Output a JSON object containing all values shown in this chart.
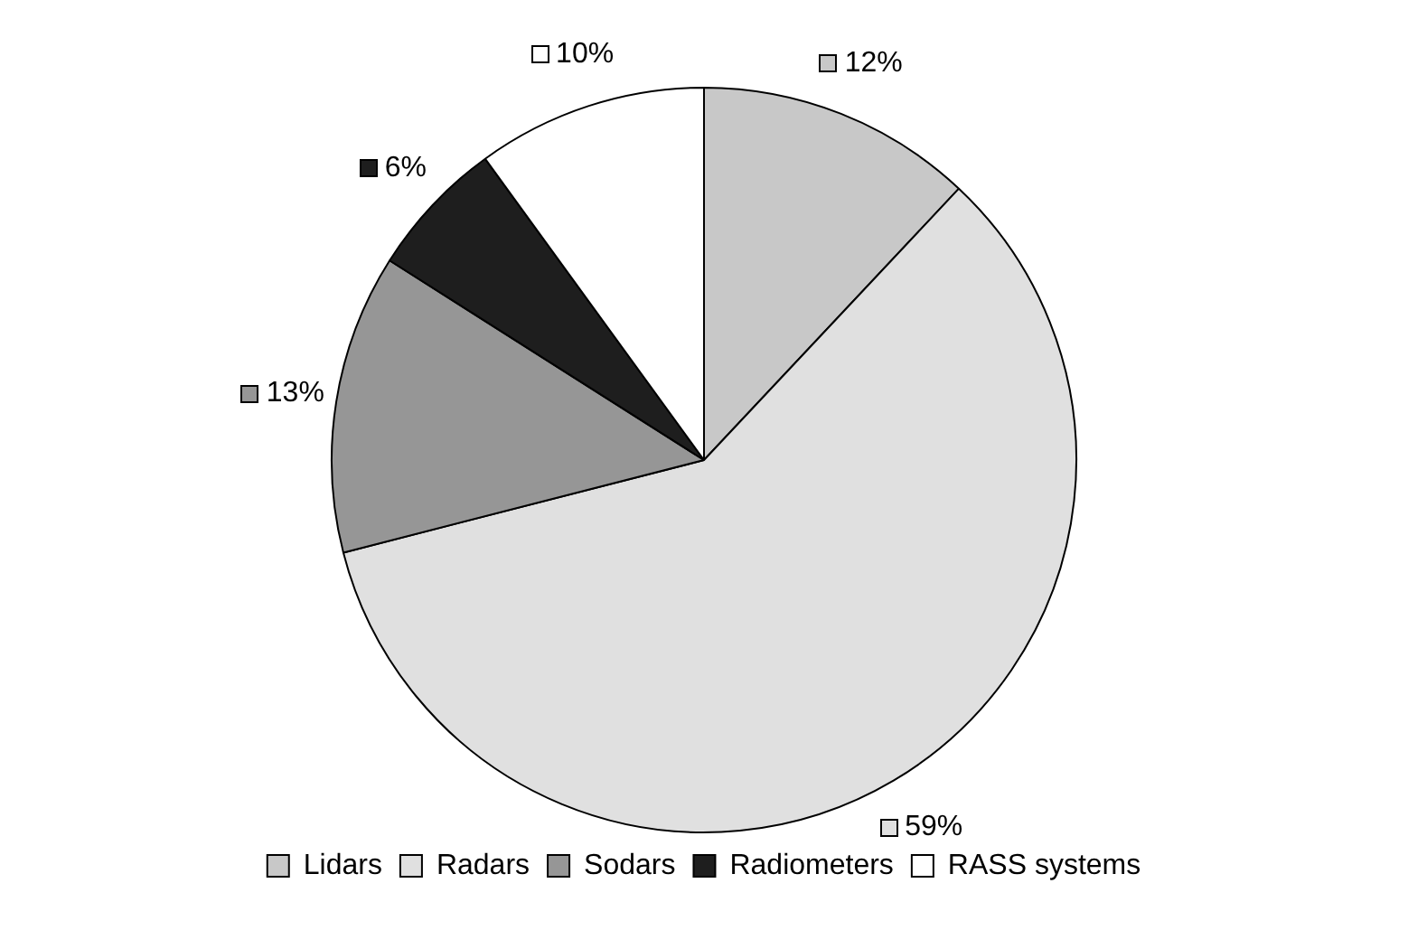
{
  "chart_data": {
    "type": "pie",
    "categories": [
      "Lidars",
      "Radars",
      "Sodars",
      "Radiometers",
      "RASS systems"
    ],
    "values": [
      12,
      59,
      13,
      6,
      10
    ],
    "colors": [
      "#c8c8c8",
      "#e0e0e0",
      "#969696",
      "#1e1e1e",
      "#ffffff"
    ],
    "value_labels": [
      "12%",
      "59%",
      "13%",
      "6%",
      "10%"
    ],
    "legend": "bottom"
  }
}
